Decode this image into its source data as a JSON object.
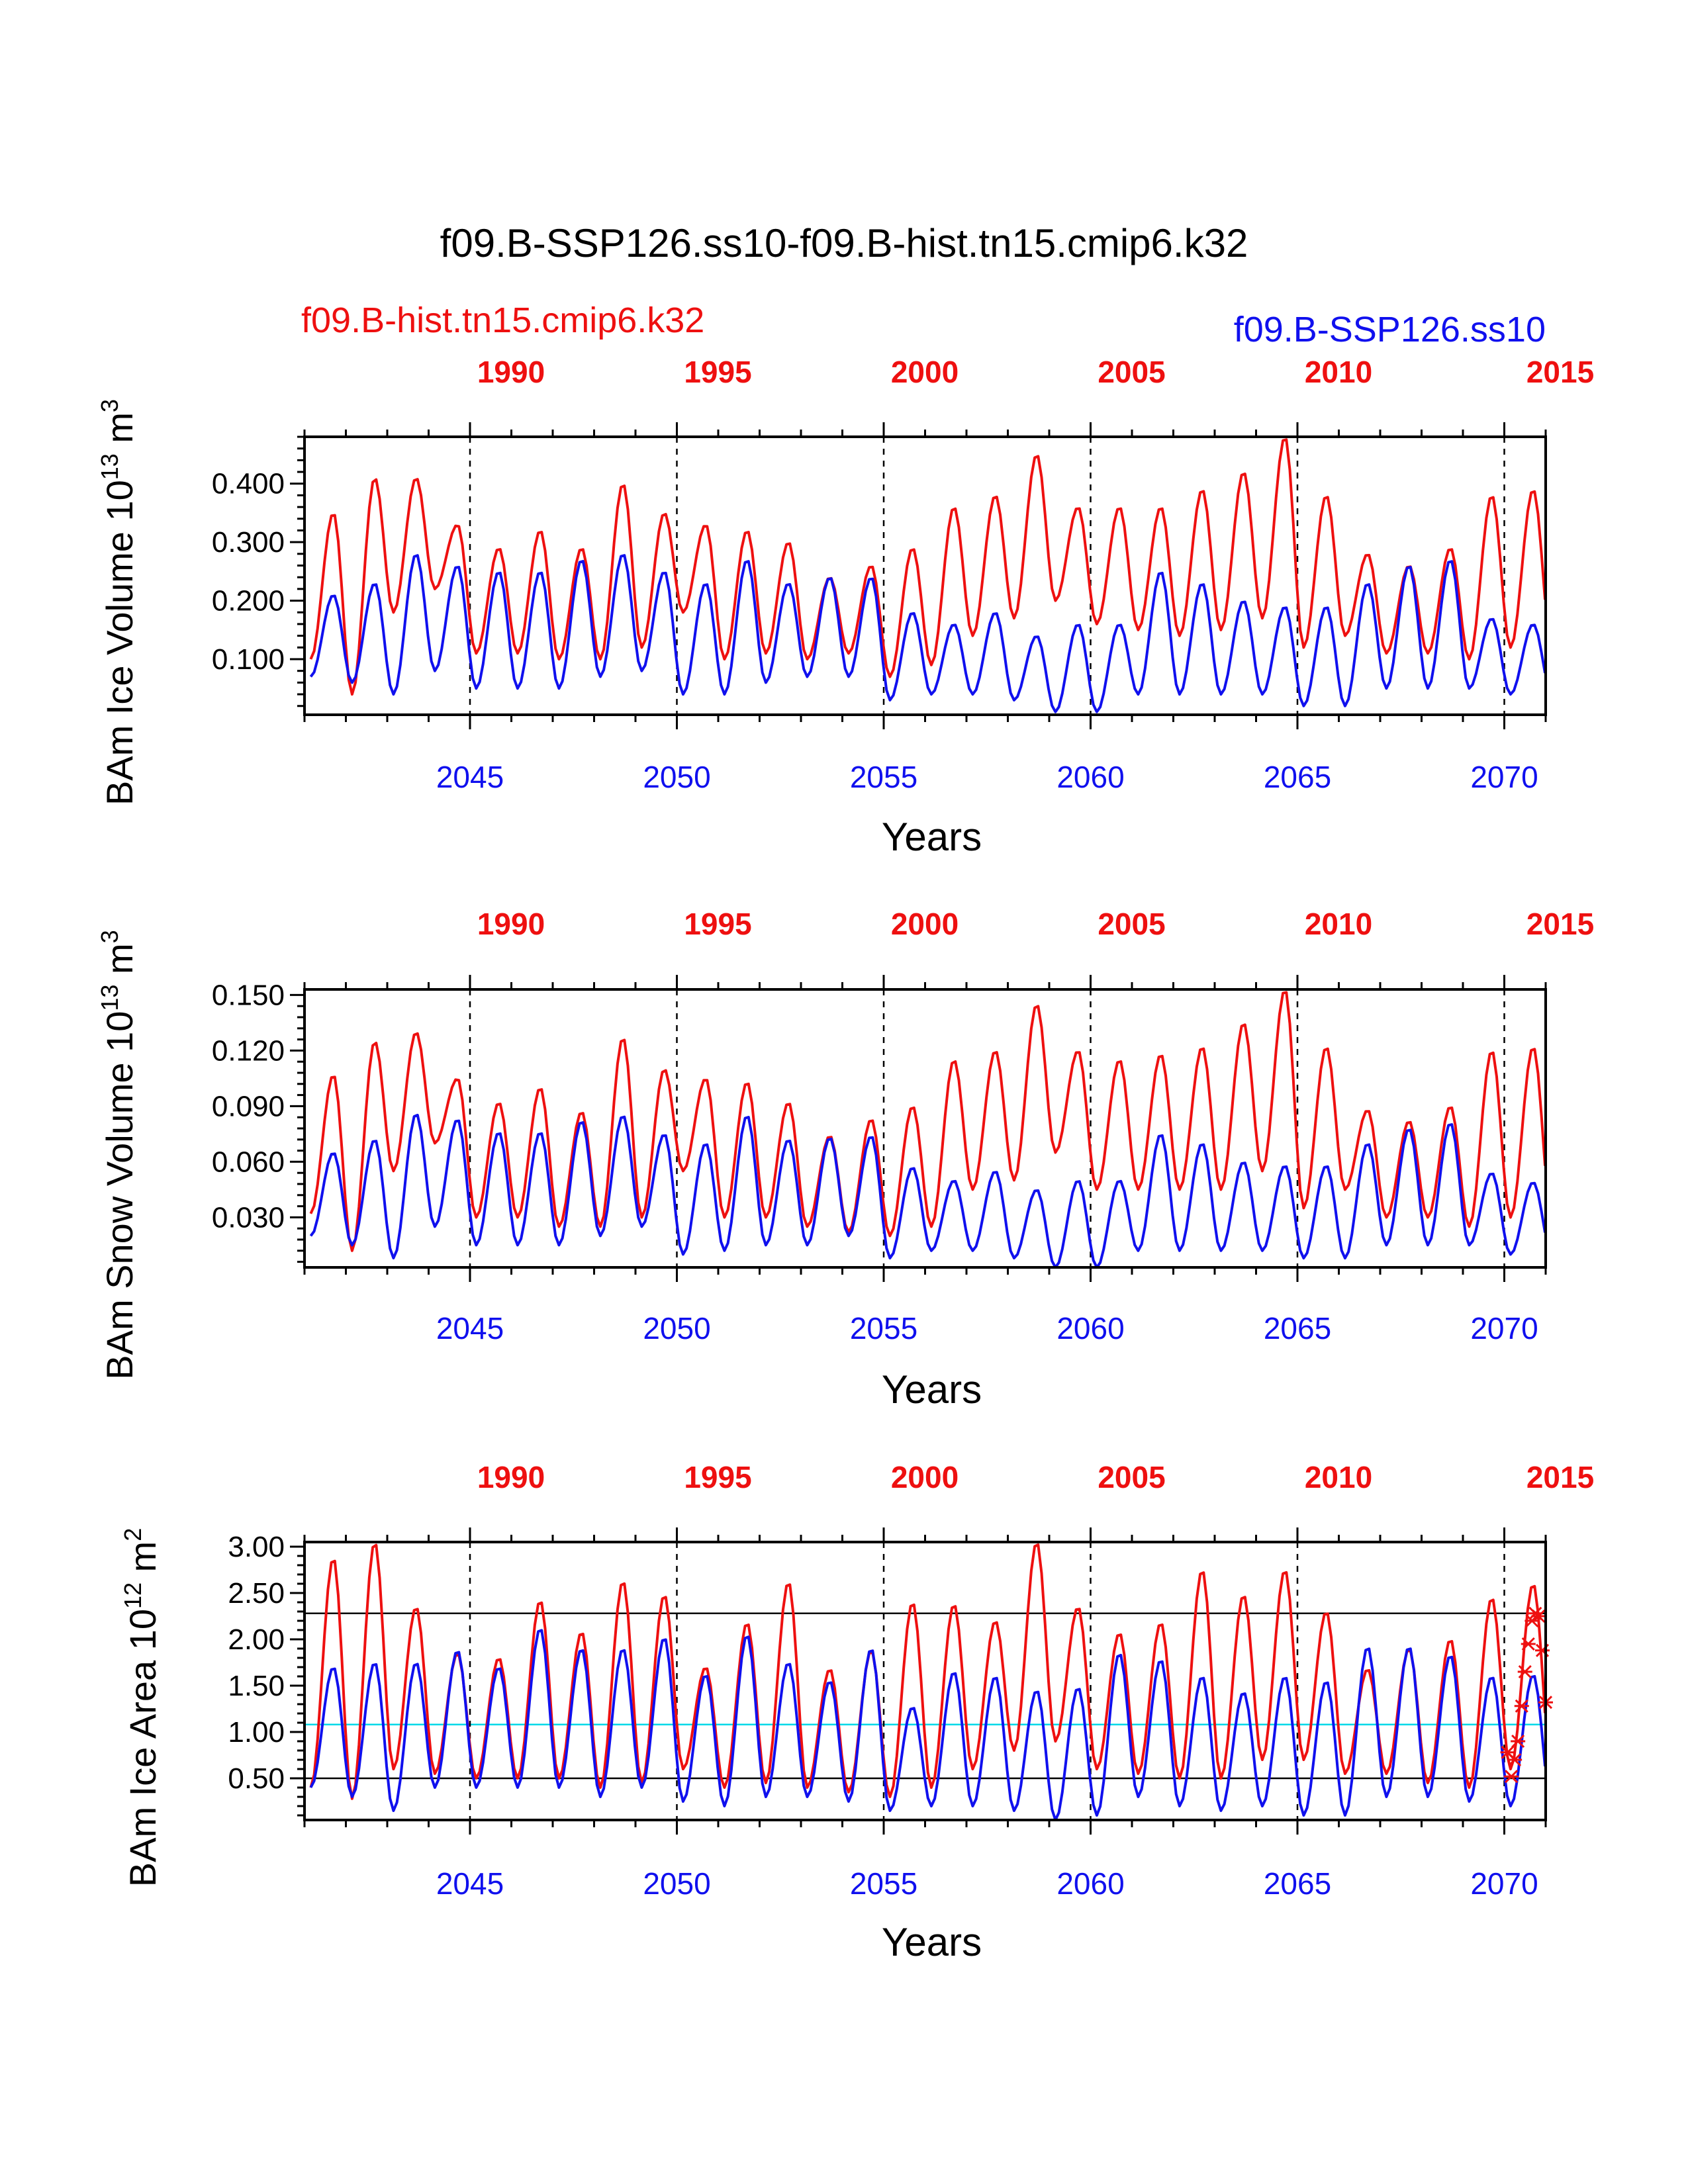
{
  "figure": {
    "title": "f09.B-SSP126.ss10-f09.B-hist.tn15.cmip6.k32",
    "case_ref": "f09.B-hist.tn15.cmip6.k32",
    "case_new": "f09.B-SSP126.ss10",
    "colors": {
      "ref": "#ee1010",
      "new": "#1010ee",
      "reference_line_cyan": "#00d8e8",
      "frame": "#000000"
    }
  },
  "chart_data": [
    {
      "type": "line",
      "ylabel": "BAm Ice Volume 10",
      "ylabel_exp": "13",
      "ylabel_unit": "m",
      "ylabel_unit_exp": "3",
      "xlabel": "Years",
      "x_bottom_ticks": [
        "2045",
        "2050",
        "2055",
        "2060",
        "2065",
        "2070"
      ],
      "x_top_ticks": [
        "1990",
        "1995",
        "2000",
        "2005",
        "2010",
        "2015"
      ],
      "x_range": [
        2041,
        2071
      ],
      "y_range": [
        0.005,
        0.48
      ],
      "y_ticks": [
        "0.100",
        "0.200",
        "0.300",
        "0.400"
      ],
      "y_tick_values": [
        0.1,
        0.2,
        0.3,
        0.4
      ],
      "vertical_dashed_at": [
        2045,
        2050,
        2055,
        2060,
        2065,
        2070
      ],
      "series": [
        {
          "name": "f09.B-hist.tn15.cmip6.k32",
          "color": "#ee1010",
          "x": [
            2041.15,
            2042.15,
            2043.15,
            2044.15,
            2045.15,
            2046.15,
            2047.15,
            2048.15,
            2049.15,
            2050.15,
            2051.15,
            2052.15,
            2053.15,
            2054.15,
            2055.15,
            2056.15,
            2057.15,
            2058.15,
            2059.15,
            2060.15,
            2061.15,
            2062.15,
            2063.15,
            2064.15,
            2065.15,
            2066.15,
            2067.15,
            2068.15,
            2069.15,
            2070.15
          ],
          "min": [
            0.1,
            0.04,
            0.18,
            0.22,
            0.11,
            0.11,
            0.1,
            0.1,
            0.12,
            0.18,
            0.1,
            0.11,
            0.1,
            0.11,
            0.07,
            0.09,
            0.14,
            0.17,
            0.2,
            0.16,
            0.15,
            0.14,
            0.15,
            0.17,
            0.12,
            0.14,
            0.11,
            0.11,
            0.1,
            0.12
          ],
          "max": [
            0.35,
            0.41,
            0.41,
            0.33,
            0.29,
            0.32,
            0.29,
            0.4,
            0.35,
            0.33,
            0.32,
            0.3,
            0.24,
            0.26,
            0.29,
            0.36,
            0.38,
            0.45,
            0.36,
            0.36,
            0.36,
            0.39,
            0.42,
            0.48,
            0.38,
            0.28,
            0.26,
            0.29,
            0.38,
            0.39
          ]
        },
        {
          "name": "f09.B-SSP126.ss10",
          "color": "#1010ee",
          "x": [
            2041.15,
            2042.15,
            2043.15,
            2044.15,
            2045.15,
            2046.15,
            2047.15,
            2048.15,
            2049.15,
            2050.15,
            2051.15,
            2052.15,
            2053.15,
            2054.15,
            2055.15,
            2056.15,
            2057.15,
            2058.15,
            2059.15,
            2060.15,
            2061.15,
            2062.15,
            2063.15,
            2064.15,
            2065.15,
            2066.15,
            2067.15,
            2068.15,
            2069.15,
            2070.15
          ],
          "min": [
            0.07,
            0.06,
            0.04,
            0.08,
            0.05,
            0.05,
            0.05,
            0.07,
            0.08,
            0.04,
            0.04,
            0.06,
            0.07,
            0.07,
            0.03,
            0.04,
            0.04,
            0.03,
            0.01,
            0.01,
            0.04,
            0.04,
            0.04,
            0.04,
            0.02,
            0.02,
            0.05,
            0.05,
            0.05,
            0.04
          ],
          "max": [
            0.21,
            0.23,
            0.28,
            0.26,
            0.25,
            0.25,
            0.27,
            0.28,
            0.25,
            0.23,
            0.27,
            0.23,
            0.24,
            0.24,
            0.18,
            0.16,
            0.18,
            0.14,
            0.16,
            0.16,
            0.25,
            0.23,
            0.2,
            0.19,
            0.19,
            0.23,
            0.26,
            0.27,
            0.17,
            0.16
          ]
        }
      ]
    },
    {
      "type": "line",
      "ylabel": "BAm Snow Volume 10",
      "ylabel_exp": "13",
      "ylabel_unit": "m",
      "ylabel_unit_exp": "3",
      "xlabel": "Years",
      "x_bottom_ticks": [
        "2045",
        "2050",
        "2055",
        "2060",
        "2065",
        "2070"
      ],
      "x_top_ticks": [
        "1990",
        "1995",
        "2000",
        "2005",
        "2010",
        "2015"
      ],
      "x_range": [
        2041,
        2071
      ],
      "y_range": [
        0.003,
        0.153
      ],
      "y_ticks": [
        "0.030",
        "0.060",
        "0.090",
        "0.120",
        "0.150"
      ],
      "y_tick_values": [
        0.03,
        0.06,
        0.09,
        0.12,
        0.15
      ],
      "vertical_dashed_at": [
        2045,
        2050,
        2055,
        2060,
        2065,
        2070
      ],
      "series": [
        {
          "name": "f09.B-hist.tn15.cmip6.k32",
          "color": "#ee1010",
          "x": [
            2041.15,
            2042.15,
            2043.15,
            2044.15,
            2045.15,
            2046.15,
            2047.15,
            2048.15,
            2049.15,
            2050.15,
            2051.15,
            2052.15,
            2053.15,
            2054.15,
            2055.15,
            2056.15,
            2057.15,
            2058.15,
            2059.15,
            2060.15,
            2061.15,
            2062.15,
            2063.15,
            2064.15,
            2065.15,
            2066.15,
            2067.15,
            2068.15,
            2069.15,
            2070.15
          ],
          "min": [
            0.032,
            0.012,
            0.055,
            0.07,
            0.03,
            0.03,
            0.025,
            0.025,
            0.03,
            0.055,
            0.03,
            0.03,
            0.025,
            0.022,
            0.02,
            0.025,
            0.045,
            0.05,
            0.065,
            0.045,
            0.045,
            0.045,
            0.045,
            0.055,
            0.035,
            0.045,
            0.03,
            0.03,
            0.025,
            0.03
          ],
          "max": [
            0.107,
            0.125,
            0.13,
            0.105,
            0.092,
            0.1,
            0.087,
            0.127,
            0.11,
            0.105,
            0.103,
            0.092,
            0.074,
            0.083,
            0.09,
            0.115,
            0.12,
            0.145,
            0.12,
            0.115,
            0.118,
            0.122,
            0.135,
            0.153,
            0.122,
            0.088,
            0.082,
            0.09,
            0.12,
            0.122
          ]
        },
        {
          "name": "f09.B-SSP126.ss10",
          "color": "#1010ee",
          "x": [
            2041.15,
            2042.15,
            2043.15,
            2044.15,
            2045.15,
            2046.15,
            2047.15,
            2048.15,
            2049.15,
            2050.15,
            2051.15,
            2052.15,
            2053.15,
            2054.15,
            2055.15,
            2056.15,
            2057.15,
            2058.15,
            2059.15,
            2060.15,
            2061.15,
            2062.15,
            2063.15,
            2064.15,
            2065.15,
            2066.15,
            2067.15,
            2068.15,
            2069.15,
            2070.15
          ],
          "min": [
            0.02,
            0.015,
            0.008,
            0.025,
            0.015,
            0.015,
            0.015,
            0.02,
            0.025,
            0.01,
            0.012,
            0.015,
            0.015,
            0.02,
            0.008,
            0.012,
            0.012,
            0.008,
            0.003,
            0.003,
            0.012,
            0.012,
            0.012,
            0.012,
            0.008,
            0.008,
            0.015,
            0.015,
            0.015,
            0.01
          ],
          "max": [
            0.065,
            0.072,
            0.086,
            0.083,
            0.076,
            0.076,
            0.082,
            0.085,
            0.075,
            0.07,
            0.085,
            0.072,
            0.073,
            0.074,
            0.057,
            0.05,
            0.055,
            0.045,
            0.05,
            0.05,
            0.075,
            0.07,
            0.06,
            0.058,
            0.058,
            0.07,
            0.078,
            0.081,
            0.054,
            0.049
          ]
        }
      ]
    },
    {
      "type": "line",
      "ylabel": "BAm Ice Area 10",
      "ylabel_exp": "12",
      "ylabel_unit": "m",
      "ylabel_unit_exp": "2",
      "xlabel": "Years",
      "x_bottom_ticks": [
        "2045",
        "2050",
        "2055",
        "2060",
        "2065",
        "2070"
      ],
      "x_top_ticks": [
        "1990",
        "1995",
        "2000",
        "2005",
        "2010",
        "2015"
      ],
      "x_range": [
        2041,
        2071
      ],
      "y_range": [
        0.05,
        3.05
      ],
      "y_ticks": [
        "0.50",
        "1.00",
        "1.50",
        "2.00",
        "2.50",
        "3.00"
      ],
      "y_tick_values": [
        0.5,
        1.0,
        1.5,
        2.0,
        2.5,
        3.0
      ],
      "vertical_dashed_at": [
        2045,
        2050,
        2055,
        2060,
        2065,
        2070
      ],
      "horizontal_lines": [
        {
          "y": 2.28,
          "color": "#000000"
        },
        {
          "y": 1.08,
          "color": "#00d8e8"
        },
        {
          "y": 0.5,
          "color": "#000000"
        }
      ],
      "markers": {
        "color": "#ee1010",
        "x": [
          2070.08,
          2070.17,
          2070.25,
          2070.33,
          2070.42,
          2070.5,
          2070.58,
          2070.67,
          2070.75,
          2070.83,
          2070.92,
          2071.0
        ],
        "y": [
          0.78,
          0.52,
          0.7,
          0.9,
          1.28,
          1.65,
          1.95,
          2.2,
          2.28,
          2.25,
          1.88,
          1.32
        ]
      },
      "series": [
        {
          "name": "f09.B-hist.tn15.cmip6.k32",
          "color": "#ee1010",
          "x": [
            2041.15,
            2042.15,
            2043.15,
            2044.15,
            2045.15,
            2046.15,
            2047.15,
            2048.15,
            2049.15,
            2050.15,
            2051.15,
            2052.15,
            2053.15,
            2054.15,
            2055.15,
            2056.15,
            2057.15,
            2058.15,
            2059.15,
            2060.15,
            2061.15,
            2062.15,
            2063.15,
            2064.15,
            2065.15,
            2066.15,
            2067.15,
            2068.15,
            2069.15,
            2070.15
          ],
          "min": [
            0.4,
            0.28,
            0.6,
            0.55,
            0.5,
            0.5,
            0.5,
            0.4,
            0.45,
            0.6,
            0.4,
            0.45,
            0.4,
            0.35,
            0.3,
            0.4,
            0.6,
            0.8,
            0.9,
            0.6,
            0.55,
            0.5,
            0.5,
            0.7,
            0.7,
            0.55,
            0.55,
            0.45,
            0.4,
            0.6
          ],
          "max": [
            2.88,
            3.05,
            2.35,
            1.85,
            1.8,
            2.42,
            2.08,
            2.63,
            2.48,
            1.7,
            2.18,
            2.62,
            1.68,
            1.88,
            2.4,
            2.38,
            2.2,
            3.05,
            2.35,
            2.07,
            2.18,
            2.75,
            2.48,
            2.75,
            2.3,
            1.68,
            1.9,
            2.0,
            2.45,
            2.6
          ]
        },
        {
          "name": "f09.B-SSP126.ss10",
          "color": "#1010ee",
          "x": [
            2041.15,
            2042.15,
            2043.15,
            2044.15,
            2045.15,
            2046.15,
            2047.15,
            2048.15,
            2049.15,
            2050.15,
            2051.15,
            2052.15,
            2053.15,
            2054.15,
            2055.15,
            2056.15,
            2057.15,
            2058.15,
            2059.15,
            2060.15,
            2061.15,
            2062.15,
            2063.15,
            2064.15,
            2065.15,
            2066.15,
            2067.15,
            2068.15,
            2069.15,
            2070.15
          ],
          "min": [
            0.4,
            0.3,
            0.15,
            0.4,
            0.4,
            0.4,
            0.4,
            0.3,
            0.4,
            0.25,
            0.2,
            0.3,
            0.3,
            0.25,
            0.15,
            0.2,
            0.2,
            0.15,
            0.05,
            0.1,
            0.3,
            0.2,
            0.15,
            0.2,
            0.1,
            0.1,
            0.3,
            0.3,
            0.25,
            0.2
          ],
          "max": [
            1.7,
            1.75,
            1.75,
            1.88,
            1.7,
            2.12,
            1.9,
            1.9,
            2.02,
            1.62,
            2.05,
            1.75,
            1.55,
            1.9,
            1.27,
            1.65,
            1.6,
            1.45,
            1.48,
            1.85,
            1.78,
            1.6,
            1.43,
            1.6,
            1.55,
            1.92,
            1.92,
            1.83,
            1.6,
            1.62
          ]
        }
      ]
    }
  ]
}
